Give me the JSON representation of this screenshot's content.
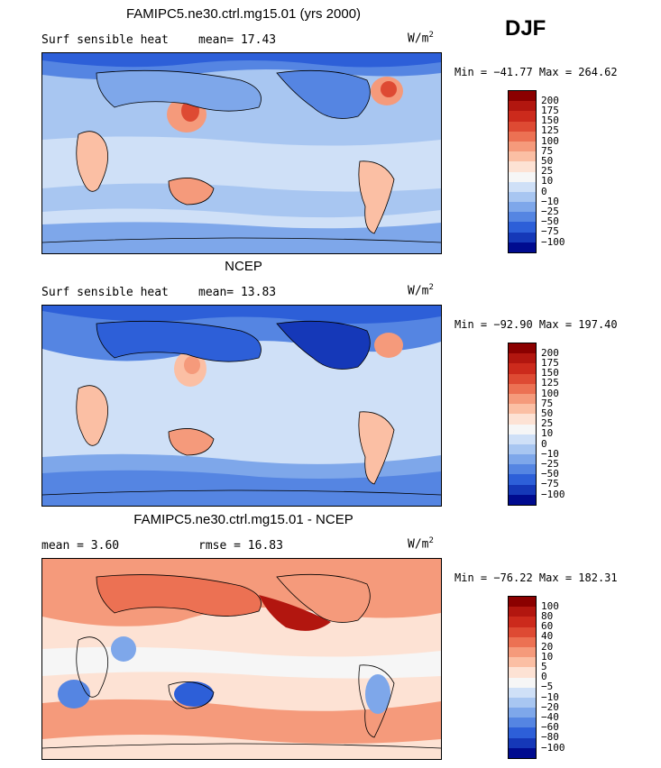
{
  "season": "DJF",
  "panels": [
    {
      "title": "FAMIPC5.ne30.ctrl.mg15.01 (yrs 2000)",
      "left_label": "Surf sensible heat",
      "mid_label": "mean=  17.43",
      "unit": "W/m",
      "unit_exp": "2",
      "minmax": "Min = −41.77 Max = 264.62",
      "colorbar_labels": [
        "200",
        "175",
        "150",
        "125",
        "100",
        "75",
        "50",
        "25",
        "10",
        "0",
        "−10",
        "−25",
        "−50",
        "−75",
        "−100"
      ],
      "colorbar_colors": [
        "#8b0000",
        "#b2160f",
        "#cc2a1c",
        "#de4a33",
        "#ec7153",
        "#f59a7b",
        "#fbbfa4",
        "#fde2d4",
        "#f6f6f6",
        "#cfe0f7",
        "#a8c6f1",
        "#7ea7ea",
        "#5585e2",
        "#2d5fd8",
        "#1538b8",
        "#000b8f"
      ]
    },
    {
      "title": "NCEP",
      "left_label": "Surf sensible heat",
      "mid_label": "mean=  13.83",
      "unit": "W/m",
      "unit_exp": "2",
      "minmax": "Min = −92.90 Max = 197.40",
      "colorbar_labels": [
        "200",
        "175",
        "150",
        "125",
        "100",
        "75",
        "50",
        "25",
        "10",
        "0",
        "−10",
        "−25",
        "−50",
        "−75",
        "−100"
      ],
      "colorbar_colors": [
        "#8b0000",
        "#b2160f",
        "#cc2a1c",
        "#de4a33",
        "#ec7153",
        "#f59a7b",
        "#fbbfa4",
        "#fde2d4",
        "#f6f6f6",
        "#cfe0f7",
        "#a8c6f1",
        "#7ea7ea",
        "#5585e2",
        "#2d5fd8",
        "#1538b8",
        "#000b8f"
      ]
    },
    {
      "title": "FAMIPC5.ne30.ctrl.mg15.01 - NCEP",
      "left_label": "mean =   3.60",
      "mid_label": "rmse =  16.83",
      "unit": "W/m",
      "unit_exp": "2",
      "minmax": "Min = −76.22 Max = 182.31",
      "colorbar_labels": [
        "100",
        "80",
        "60",
        "40",
        "20",
        "10",
        "5",
        "0",
        "−5",
        "−10",
        "−20",
        "−40",
        "−60",
        "−80",
        "−100"
      ],
      "colorbar_colors": [
        "#8b0000",
        "#b2160f",
        "#cc2a1c",
        "#de4a33",
        "#ec7153",
        "#f59a7b",
        "#fbbfa4",
        "#fde2d4",
        "#f6f6f6",
        "#cfe0f7",
        "#a8c6f1",
        "#7ea7ea",
        "#5585e2",
        "#2d5fd8",
        "#1538b8",
        "#000b8f"
      ]
    }
  ]
}
